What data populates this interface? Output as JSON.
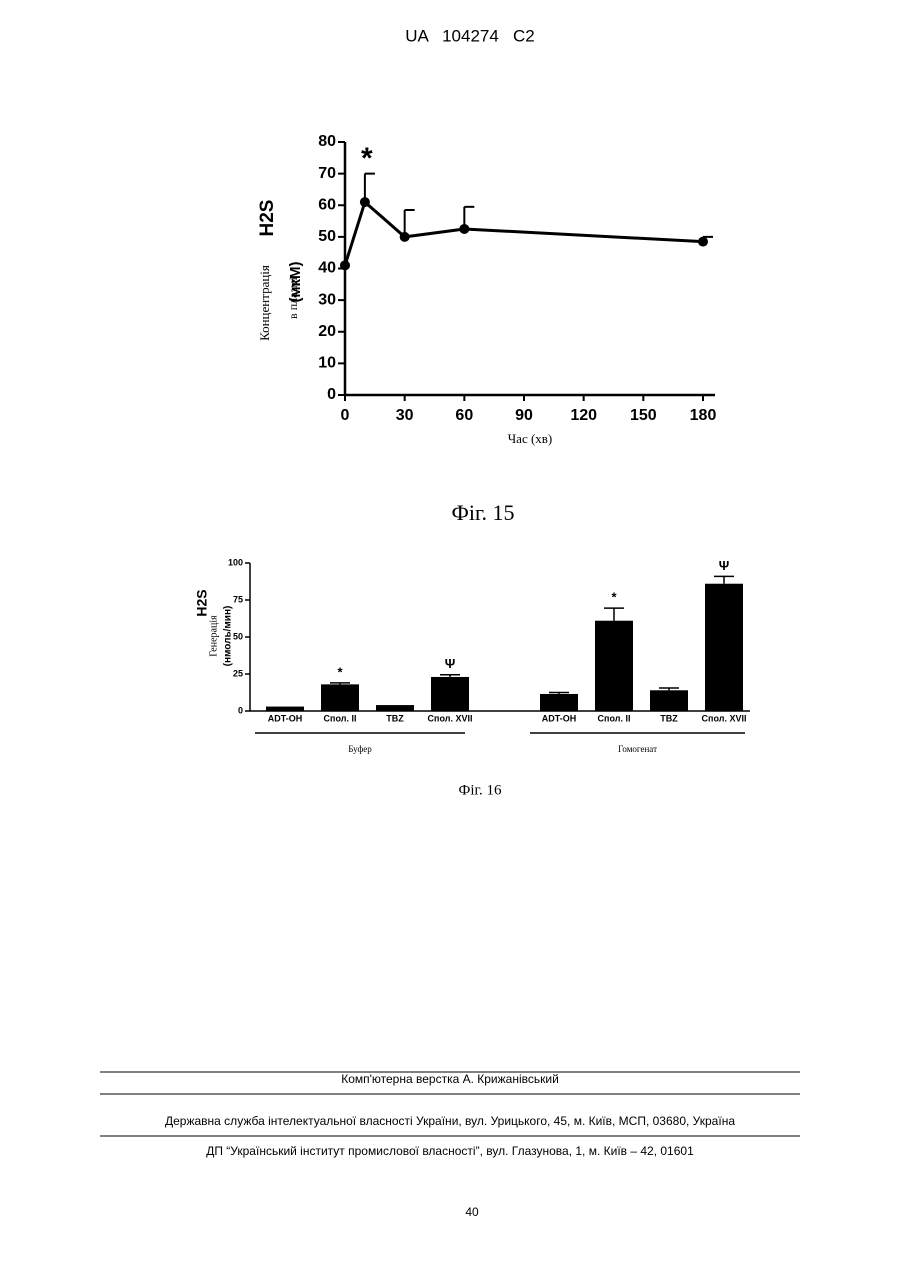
{
  "header": "UA   104274   C2",
  "chart_data": [
    {
      "type": "line",
      "caption": "Фіг. 15",
      "ylabel": [
        "Концентрація",
        "в плазмі",
        "H2S",
        "(мкМ)"
      ],
      "xlabel": "Час (хв)",
      "x": [
        0,
        10,
        30,
        60,
        180
      ],
      "values": [
        41,
        61,
        50,
        52.5,
        48.5
      ],
      "errors": [
        null,
        9,
        8.5,
        7,
        1.5
      ],
      "annotations": [
        null,
        "*",
        null,
        null,
        null
      ],
      "color": "#000000",
      "xlim": [
        0,
        180
      ],
      "xticks": [
        0,
        30,
        60,
        90,
        120,
        150,
        180
      ],
      "ylim": [
        0,
        80
      ],
      "yticks": [
        0,
        10,
        20,
        30,
        40,
        50,
        60,
        70,
        80
      ]
    },
    {
      "type": "bar",
      "caption": "Фіг. 16",
      "ylabel": [
        "Генерація",
        "H2S",
        "(нмоль/мин)"
      ],
      "color": "#000000",
      "ylim": [
        0,
        100
      ],
      "yticks": [
        0,
        25,
        50,
        75,
        100
      ],
      "groups": [
        {
          "label": "Буфер",
          "categories": [
            "ADT-OH",
            "Спол. II",
            "TBZ",
            "Спол. XVII"
          ],
          "values": [
            3,
            18,
            4,
            23
          ],
          "errors": [
            null,
            1,
            null,
            1.5
          ],
          "annotations": [
            null,
            "*",
            null,
            "Ψ"
          ]
        },
        {
          "label": "Гомогенат",
          "categories": [
            "ADT-OH",
            "Спол. II",
            "TBZ",
            "Спол. XVII"
          ],
          "values": [
            11.5,
            61,
            14,
            86
          ],
          "errors": [
            1,
            8.5,
            1.5,
            5
          ],
          "annotations": [
            null,
            "*",
            null,
            "Ψ"
          ]
        }
      ]
    }
  ],
  "footer": {
    "layout": "Комп'ютерна верстка А. Крижанівський",
    "office": "Державна служба інтелектуальної власності України, вул. Урицького, 45, м. Київ, МСП, 03680, Україна",
    "publisher": "ДП “Український інститут промислової власності”, вул. Глазунова, 1, м. Київ – 42, 01601"
  },
  "page_number": "40"
}
